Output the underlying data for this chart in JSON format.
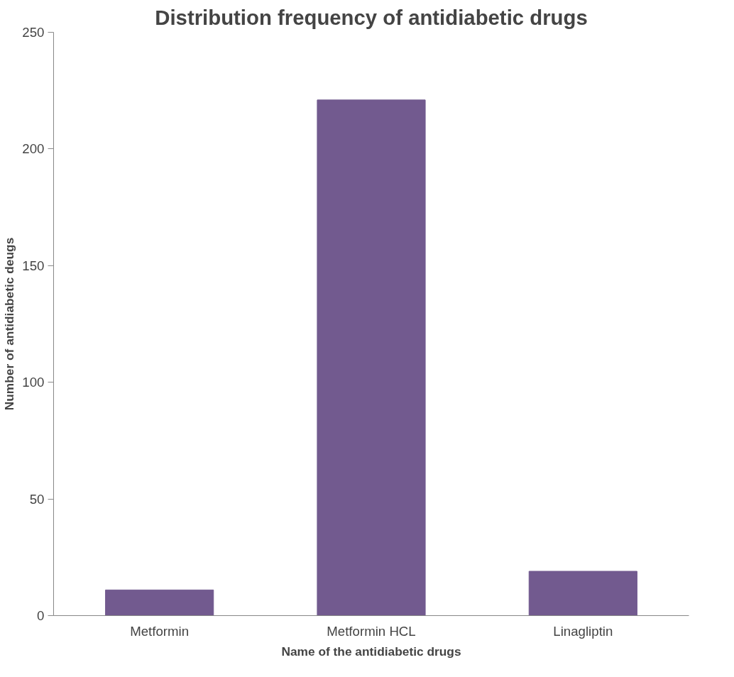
{
  "chart_data": {
    "type": "bar",
    "title": "Distribution frequency of antidiabetic drugs",
    "xlabel": "Name of the antidiabetic drugs",
    "ylabel": "Number of antidiabetic deugs",
    "categories": [
      "Metformin",
      "Metformin HCL",
      "Linagliptin"
    ],
    "values": [
      11,
      221,
      19
    ],
    "color": "#725a8f",
    "ylim": [
      0,
      250
    ],
    "yticks": [
      0,
      50,
      100,
      150,
      200,
      250
    ],
    "grid": false
  }
}
